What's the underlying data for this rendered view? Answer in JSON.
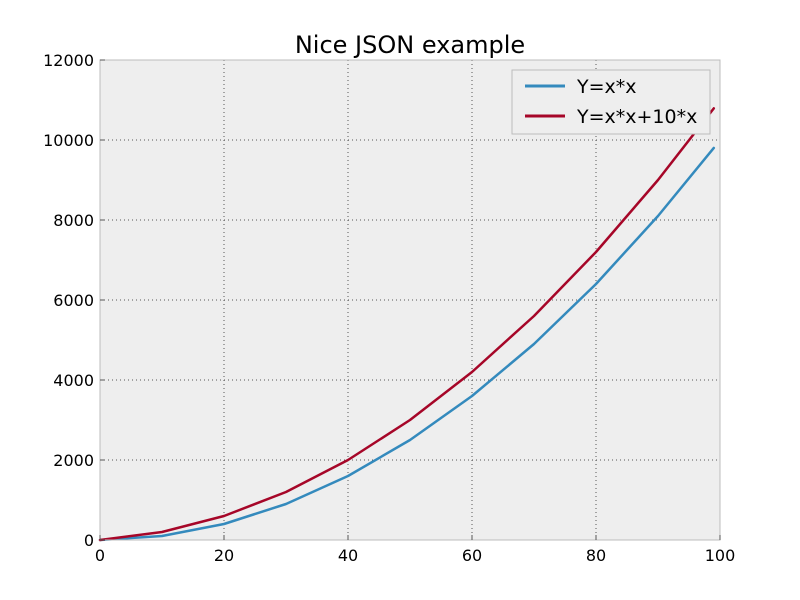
{
  "chart_data": {
    "type": "line",
    "title": "Nice JSON example",
    "xlabel": "",
    "ylabel": "",
    "xlim": [
      0,
      100
    ],
    "ylim": [
      0,
      12000
    ],
    "xticks": [
      0,
      20,
      40,
      60,
      80,
      100
    ],
    "yticks": [
      0,
      2000,
      4000,
      6000,
      8000,
      10000,
      12000
    ],
    "x_tick_labels": [
      "0",
      "20",
      "40",
      "60",
      "80",
      "100"
    ],
    "y_tick_labels": [
      "0",
      "2000",
      "4000",
      "6000",
      "8000",
      "10000",
      "12000"
    ],
    "grid": true,
    "legend_position": "top-right",
    "background_color": "#eeeeee",
    "series": [
      {
        "name": "Y=x*x",
        "color": "#348abd",
        "x": [
          0,
          10,
          20,
          30,
          40,
          50,
          60,
          70,
          80,
          90,
          99
        ],
        "y": [
          0,
          100,
          400,
          900,
          1600,
          2500,
          3600,
          4900,
          6400,
          8100,
          9801
        ]
      },
      {
        "name": "Y=x*x+10*x",
        "color": "#a60628",
        "x": [
          0,
          10,
          20,
          30,
          40,
          50,
          60,
          70,
          80,
          90,
          99
        ],
        "y": [
          0,
          200,
          600,
          1200,
          2000,
          3000,
          4200,
          5600,
          7200,
          9000,
          10791
        ]
      }
    ]
  }
}
